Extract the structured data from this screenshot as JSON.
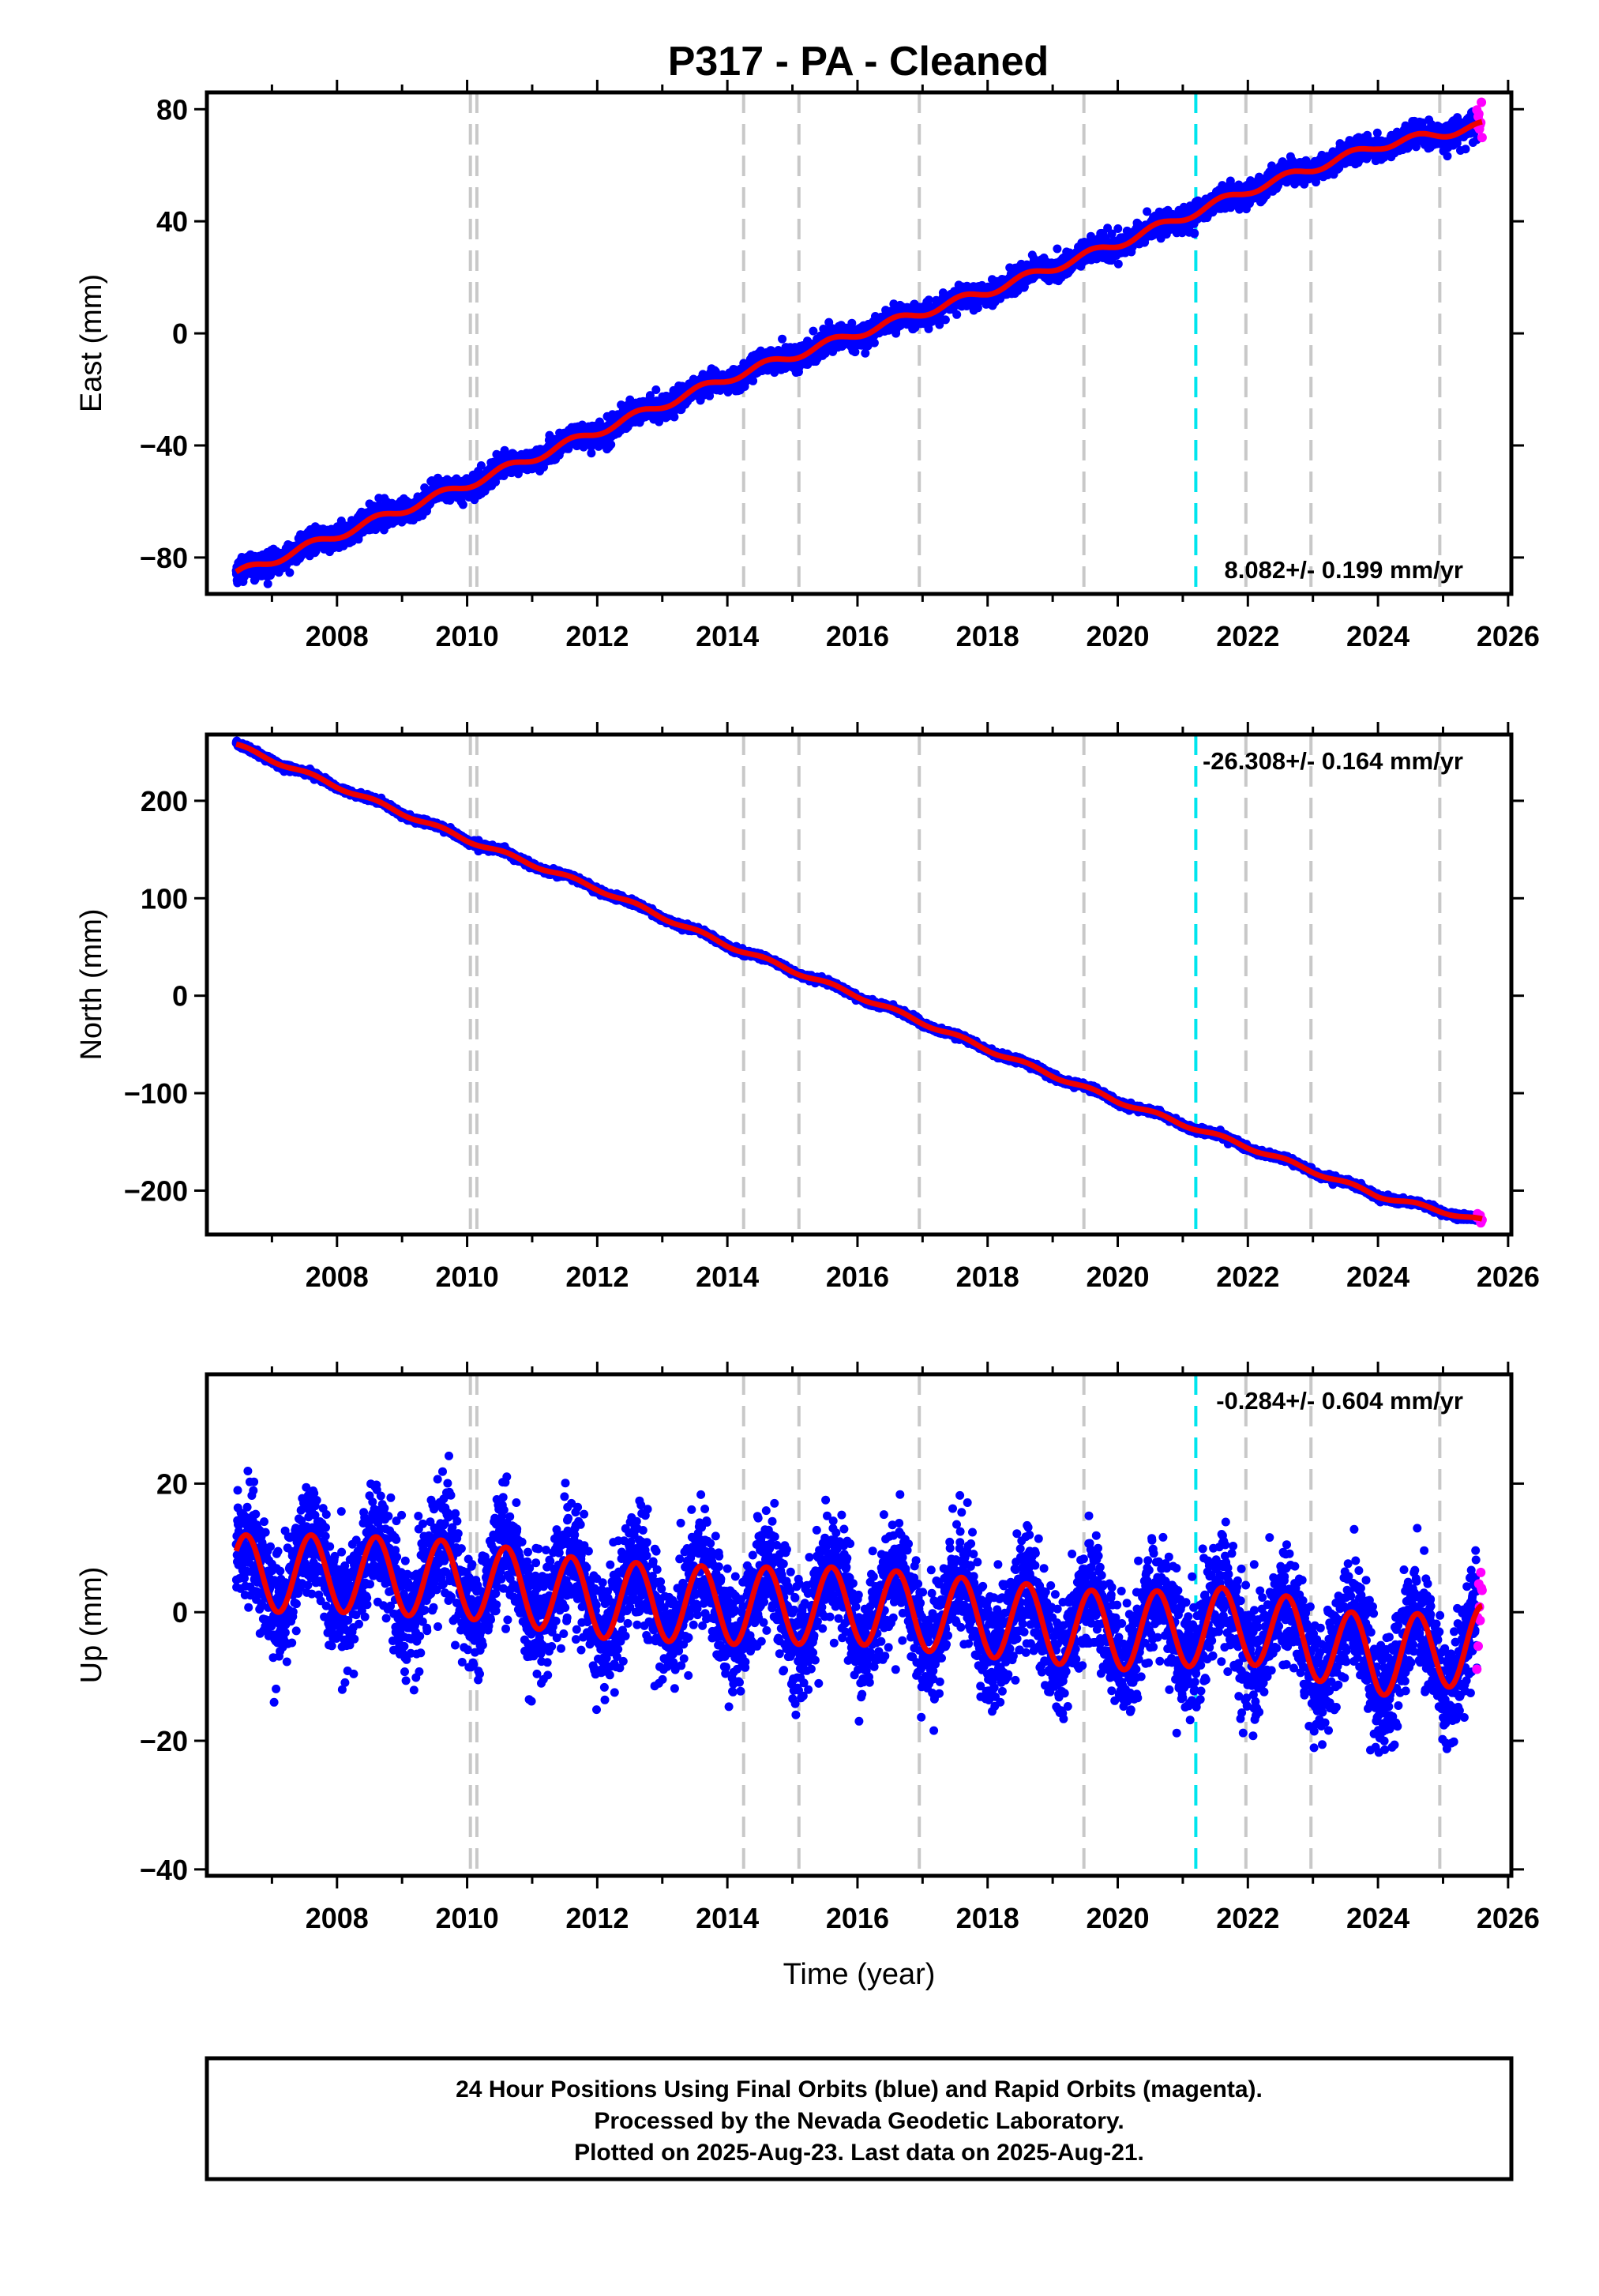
{
  "title": "P317  - PA - Cleaned",
  "colors": {
    "final": "#0000ff",
    "rapid": "#ff00ff",
    "model": "#ee0000",
    "equipment_change": "#c8c8c8",
    "earthquake": "#00e5ee"
  },
  "x_axis": {
    "label": "Time (year)",
    "range": [
      2006.0,
      2026.05
    ],
    "ticks": [
      2008,
      2010,
      2012,
      2014,
      2016,
      2018,
      2020,
      2022,
      2024,
      2026
    ],
    "tick_labels": [
      "2008",
      "2010",
      "2012",
      "2014",
      "2016",
      "2018",
      "2020",
      "2022",
      "2024",
      "2026"
    ]
  },
  "equipment_change_epochs": [
    2010.05,
    2010.15,
    2014.25,
    2015.1,
    2016.95,
    2019.48,
    2021.97,
    2022.97,
    2024.95
  ],
  "earthquake_epochs": [
    2021.2
  ],
  "chart_data": [
    {
      "type": "scatter",
      "component": "east",
      "ylabel": "East (mm)",
      "ylim": [
        -93,
        86
      ],
      "yticks": [
        -80,
        -40,
        0,
        40,
        80
      ],
      "ytick_labels": [
        "−80",
        "−40",
        "0",
        "40",
        "80"
      ],
      "rate_label": "8.082+/- 0.199 mm/yr",
      "rate_position": "bottom-right",
      "start_year": 2006.45,
      "end_year": 2025.6,
      "rapid_start_year": 2025.52,
      "model": {
        "intercept": -86.0,
        "rate": 8.082,
        "seasonal_amplitude": 1.5,
        "noise": 2.0
      },
      "trace": {
        "x": [
          2006.45,
          2008.0,
          2010.0,
          2012.0,
          2014.0,
          2016.0,
          2018.0,
          2020.0,
          2022.0,
          2024.0,
          2025.6
        ],
        "y": [
          -86,
          -72,
          -54,
          -35,
          -16,
          0,
          15,
          32,
          51,
          67,
          74
        ]
      }
    },
    {
      "type": "scatter",
      "component": "north",
      "ylabel": "North (mm)",
      "ylim": [
        -245,
        268
      ],
      "yticks": [
        -200,
        -100,
        0,
        100,
        200
      ],
      "ytick_labels": [
        "−200",
        "−100",
        "0",
        "100",
        "200"
      ],
      "rate_label": "-26.308+/- 0.164 mm/yr",
      "rate_position": "top-right",
      "start_year": 2006.45,
      "end_year": 2025.6,
      "rapid_start_year": 2025.52,
      "model": {
        "intercept": 257.0,
        "rate": -26.308,
        "seasonal_amplitude": 2.0,
        "noise": 1.5
      },
      "trace": {
        "x": [
          2006.45,
          2008.0,
          2010.0,
          2012.0,
          2014.0,
          2016.0,
          2018.0,
          2020.0,
          2022.0,
          2024.0,
          2025.6
        ],
        "y": [
          257,
          215,
          160,
          110,
          52,
          0,
          -55,
          -108,
          -155,
          -205,
          -231
        ]
      }
    },
    {
      "type": "scatter",
      "component": "up",
      "ylabel": "Up (mm)",
      "ylim": [
        -41,
        37
      ],
      "yticks": [
        -40,
        -20,
        0,
        20
      ],
      "ytick_labels": [
        "−40",
        "−20",
        "0",
        "20"
      ],
      "rate_label": "-0.284+/- 0.604 mm/yr",
      "rate_position": "top-right",
      "start_year": 2006.45,
      "end_year": 2025.6,
      "rapid_start_year": 2025.52,
      "model": {
        "intercept": 6.0,
        "rate": -0.284,
        "seasonal_amplitude": 6.0,
        "noise": 4.5
      },
      "trace": {
        "x": [
          2006.45,
          2008.0,
          2010.0,
          2012.0,
          2014.0,
          2016.0,
          2018.0,
          2020.0,
          2022.0,
          2024.0,
          2025.6
        ],
        "y": [
          6,
          6,
          5,
          2,
          1,
          1,
          -1,
          -3,
          -2,
          -7,
          -5
        ]
      }
    }
  ],
  "footer": {
    "line1": "24 Hour Positions Using Final Orbits (blue) and Rapid Orbits (magenta).",
    "line2": "Processed by the Nevada Geodetic Laboratory.",
    "line3": "Plotted on 2025-Aug-23. Last data on 2025-Aug-21."
  }
}
